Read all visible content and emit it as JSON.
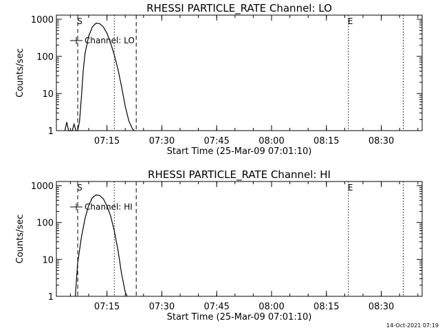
{
  "chart_data": [
    {
      "type": "line",
      "title": "RHESSI PARTICLE_RATE Channel: LO",
      "xlabel": "Start Time (25-Mar-09 07:01:10)",
      "ylabel": "Counts/sec",
      "yscale": "log",
      "ylim": [
        1,
        1000
      ],
      "xlim_minutes": [
        "07:01:10",
        "08:41:10"
      ],
      "xticks": [
        "07:15",
        "07:30",
        "07:45",
        "08:00",
        "08:15",
        "08:30"
      ],
      "yticks": [
        "1",
        "10",
        "100",
        "1000"
      ],
      "legend": "Channel: LO",
      "markers": [
        {
          "label": "S",
          "time": "07:07",
          "style": "dashed"
        },
        {
          "time": "07:17",
          "style": "dotted"
        },
        {
          "time": "07:23",
          "style": "dashed"
        },
        {
          "label": "E",
          "time": "08:21",
          "style": "dotted"
        },
        {
          "time": "08:36",
          "style": "dotted"
        }
      ],
      "series": [
        {
          "x": [
            "07:03:30",
            "07:04:00",
            "07:04:30",
            "07:05:00",
            "07:05:30",
            "07:06:00",
            "07:06:30",
            "07:07:00",
            "07:07:30",
            "07:08:00",
            "07:08:30",
            "07:09:00",
            "07:10:00",
            "07:11:00",
            "07:12:00",
            "07:13:00",
            "07:14:00",
            "07:15:00",
            "07:16:00",
            "07:17:00",
            "07:18:00",
            "07:19:00",
            "07:20:00",
            "07:21:00",
            "07:22:00",
            "07:22:30"
          ],
          "y": [
            1,
            1.7,
            1,
            1,
            1,
            1.5,
            1,
            1,
            1.8,
            8,
            40,
            120,
            350,
            620,
            780,
            760,
            620,
            420,
            230,
            110,
            45,
            15,
            4.5,
            1.8,
            1.1,
            1
          ]
        }
      ]
    },
    {
      "type": "line",
      "title": "RHESSI PARTICLE_RATE Channel: HI",
      "xlabel": "Start Time (25-Mar-09 07:01:10)",
      "ylabel": "Counts/sec",
      "yscale": "log",
      "ylim": [
        1,
        1000
      ],
      "xlim_minutes": [
        "07:01:10",
        "08:41:10"
      ],
      "xticks": [
        "07:15",
        "07:30",
        "07:45",
        "08:00",
        "08:15",
        "08:30"
      ],
      "yticks": [
        "1",
        "10",
        "100",
        "1000"
      ],
      "legend": "Channel: HI",
      "markers": [
        {
          "label": "S",
          "time": "07:07",
          "style": "dashed"
        },
        {
          "time": "07:17",
          "style": "dotted"
        },
        {
          "time": "07:23",
          "style": "dashed"
        },
        {
          "label": "E",
          "time": "08:21",
          "style": "dotted"
        },
        {
          "time": "08:36",
          "style": "dotted"
        }
      ],
      "series": [
        {
          "x": [
            "07:06:20",
            "07:07:00",
            "07:08:00",
            "07:09:00",
            "07:10:00",
            "07:11:00",
            "07:12:00",
            "07:13:00",
            "07:14:00",
            "07:15:00",
            "07:16:00",
            "07:17:00",
            "07:18:00",
            "07:19:00",
            "07:20:00",
            "07:20:30"
          ],
          "y": [
            1,
            8,
            40,
            130,
            290,
            470,
            560,
            540,
            440,
            280,
            150,
            60,
            18,
            4,
            1.3,
            1
          ]
        }
      ]
    }
  ],
  "footer": "14-Oct-2021 07:19"
}
